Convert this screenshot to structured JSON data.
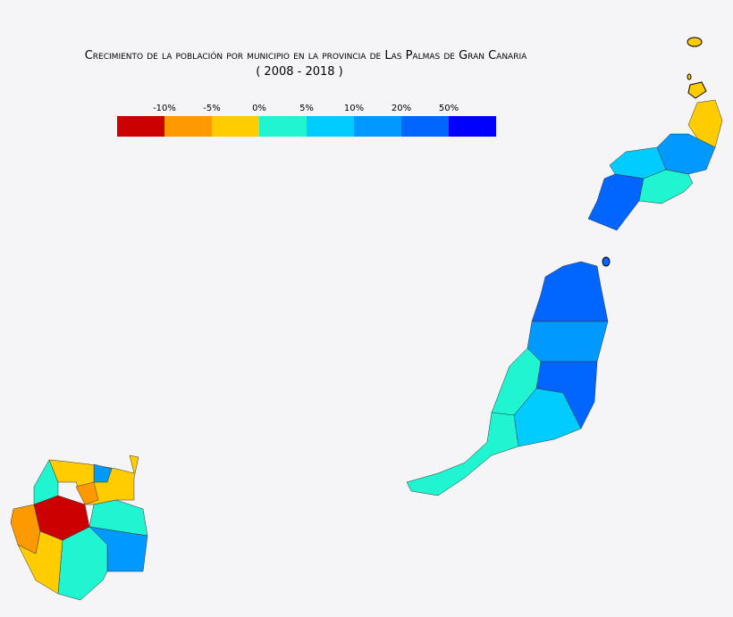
{
  "header": {
    "title": "Crecimiento de la población por municipio en la provincia de Las Palmas de Gran Canaria",
    "subtitle": "( 2008 - 2018 )"
  },
  "legend": {
    "labels": [
      "-10%",
      "-5%",
      "0%",
      "5%",
      "10%",
      "20%",
      "50%"
    ],
    "colors": [
      "#cc0000",
      "#ff9900",
      "#ffcc00",
      "#1ff5d0",
      "#00ccff",
      "#0099ff",
      "#0066ff",
      "#0000ff"
    ]
  }
}
